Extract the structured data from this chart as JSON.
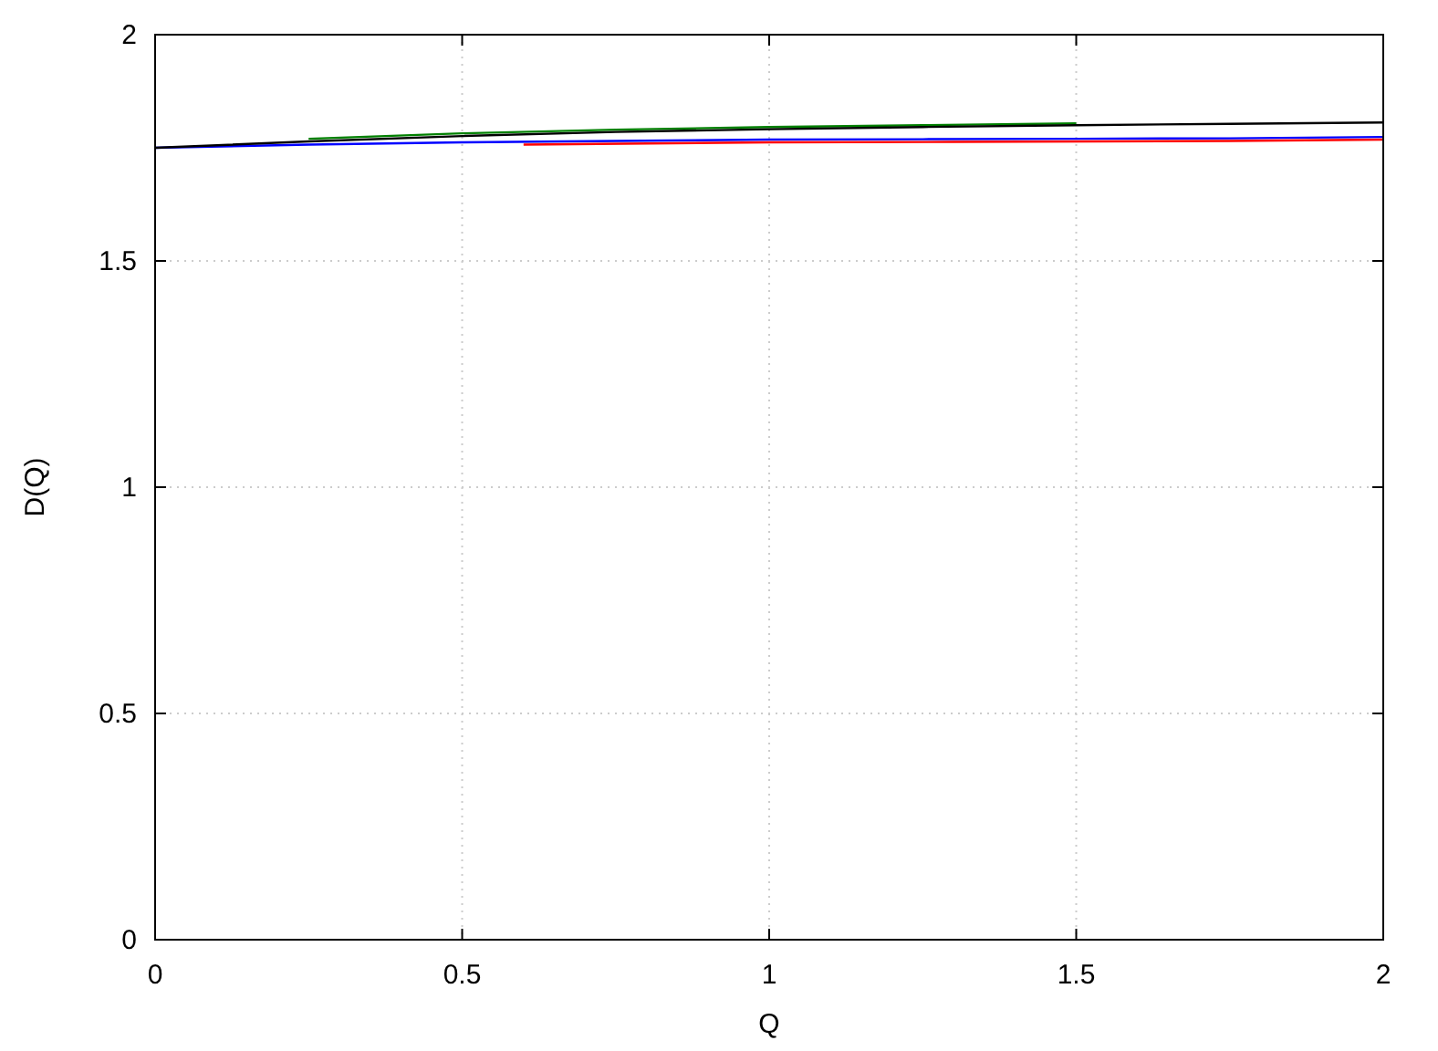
{
  "chart_data": {
    "type": "line",
    "xlabel": "Q",
    "ylabel": "D(Q)",
    "x": [
      0,
      0.25,
      0.5,
      0.75,
      1,
      1.25,
      1.5,
      1.75,
      2
    ],
    "series": [
      {
        "color": "#0000ff",
        "values": [
          1.75,
          1.757,
          1.762,
          1.765,
          1.768,
          1.769,
          1.77,
          1.771,
          1.774
        ]
      },
      {
        "color": "#ff0000",
        "x": [
          0.6,
          1,
          1.3,
          1.75,
          2
        ],
        "values": [
          1.757,
          1.762,
          1.763,
          1.765,
          1.768
        ]
      },
      {
        "color": "#008000",
        "x": [
          0.25,
          0.5,
          0.75,
          1,
          1.25,
          1.5
        ],
        "values": [
          1.77,
          1.782,
          1.79,
          1.796,
          1.8,
          1.804
        ]
      },
      {
        "color": "#000000",
        "values": [
          1.75,
          1.764,
          1.776,
          1.785,
          1.791,
          1.796,
          1.8,
          1.803,
          1.806
        ]
      }
    ],
    "xlim": [
      0,
      2
    ],
    "ylim": [
      0,
      2
    ],
    "xticks": [
      0,
      0.5,
      1,
      1.5,
      2
    ],
    "yticks": [
      0,
      0.5,
      1,
      1.5,
      2
    ],
    "grid": true,
    "line_style": "solid"
  }
}
